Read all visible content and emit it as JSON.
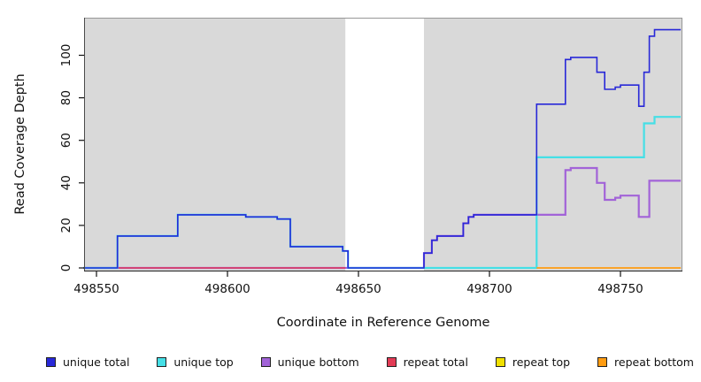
{
  "chart_data": {
    "type": "line",
    "subtype": "step-coverage",
    "title": "",
    "xlabel": "Coordinate in Reference Genome",
    "ylabel": "Read Coverage Depth",
    "xlim": [
      498545,
      498774
    ],
    "ylim": [
      0,
      117
    ],
    "grid": false,
    "legend_position": "bottom",
    "plot_background": "#D9D9D9",
    "gap_region": {
      "from": 498645,
      "to": 498675,
      "color": "#FFFFFF"
    },
    "x_ticks": {
      "values": [
        498550,
        498600,
        498650,
        498700,
        498750
      ],
      "labels": [
        "498550",
        "498600",
        "498650",
        "498700",
        "498750"
      ]
    },
    "y_ticks": {
      "values": [
        0,
        20,
        40,
        60,
        80,
        100
      ],
      "labels": [
        "0",
        "20",
        "40",
        "60",
        "80",
        "100"
      ]
    },
    "series": [
      {
        "name": "unique total",
        "color": "#2828D8",
        "points": [
          [
            498545,
            0
          ],
          [
            498558,
            15
          ],
          [
            498581,
            25
          ],
          [
            498607,
            24
          ],
          [
            498619,
            23
          ],
          [
            498624,
            10
          ],
          [
            498644,
            8
          ],
          [
            498646,
            0
          ],
          [
            498675,
            7
          ],
          [
            498678,
            13
          ],
          [
            498680,
            15
          ],
          [
            498690,
            21
          ],
          [
            498692,
            24
          ],
          [
            498694,
            25
          ],
          [
            498718,
            77
          ],
          [
            498729,
            98
          ],
          [
            498731,
            99
          ],
          [
            498741,
            92
          ],
          [
            498744,
            84
          ],
          [
            498748,
            85
          ],
          [
            498750,
            86
          ],
          [
            498757,
            76
          ],
          [
            498759,
            92
          ],
          [
            498761,
            109
          ],
          [
            498763,
            112
          ],
          [
            498773,
            112
          ]
        ]
      },
      {
        "name": "unique top",
        "color": "#45DFE6",
        "points": [
          [
            498545,
            0
          ],
          [
            498558,
            15
          ],
          [
            498581,
            25
          ],
          [
            498607,
            24
          ],
          [
            498619,
            23
          ],
          [
            498624,
            10
          ],
          [
            498644,
            8
          ],
          [
            498646,
            0
          ],
          [
            498718,
            52
          ],
          [
            498759,
            68
          ],
          [
            498763,
            71
          ],
          [
            498773,
            71
          ]
        ]
      },
      {
        "name": "unique bottom",
        "color": "#A263D8",
        "points": [
          [
            498545,
            0
          ],
          [
            498675,
            7
          ],
          [
            498678,
            13
          ],
          [
            498680,
            15
          ],
          [
            498690,
            21
          ],
          [
            498692,
            24
          ],
          [
            498694,
            25
          ],
          [
            498729,
            46
          ],
          [
            498731,
            47
          ],
          [
            498741,
            40
          ],
          [
            498744,
            32
          ],
          [
            498748,
            33
          ],
          [
            498750,
            34
          ],
          [
            498757,
            24
          ],
          [
            498761,
            41
          ],
          [
            498773,
            41
          ]
        ]
      },
      {
        "name": "repeat total",
        "color": "#E23B55",
        "points": [
          [
            498545,
            0
          ],
          [
            498645,
            0
          ]
        ]
      },
      {
        "name": "repeat top",
        "color": "#F0E000",
        "points": [
          [
            498675,
            0
          ],
          [
            498718,
            0
          ]
        ]
      },
      {
        "name": "repeat bottom",
        "color": "#FF9C12",
        "points": [
          [
            498718,
            0
          ],
          [
            498773,
            0
          ]
        ]
      }
    ]
  },
  "legend": {
    "items": [
      {
        "label": "unique total",
        "color": "#2828D8"
      },
      {
        "label": "unique top",
        "color": "#45DFE6"
      },
      {
        "label": "unique bottom",
        "color": "#A263D8"
      },
      {
        "label": "repeat total",
        "color": "#E23B55"
      },
      {
        "label": "repeat top",
        "color": "#F0E000"
      },
      {
        "label": "repeat bottom",
        "color": "#FF9C12"
      }
    ]
  }
}
